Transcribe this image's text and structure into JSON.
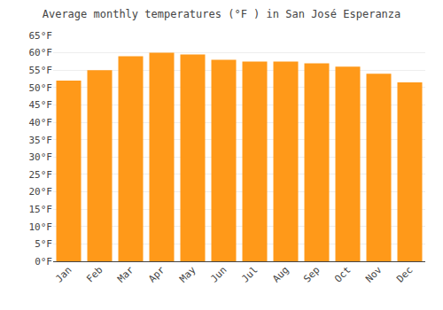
{
  "chart_data": {
    "type": "bar",
    "title": "Average monthly temperatures (°F ) in San José Esperanza",
    "categories": [
      "Jan",
      "Feb",
      "Mar",
      "Apr",
      "May",
      "Jun",
      "Jul",
      "Aug",
      "Sep",
      "Oct",
      "Nov",
      "Dec"
    ],
    "values": [
      52,
      55,
      59,
      60,
      59.5,
      58,
      57.5,
      57.5,
      57,
      56,
      54,
      51.5
    ],
    "color": "#ff9919",
    "ylim": [
      0,
      65
    ],
    "yticks": [
      {
        "value": 0,
        "label": "0°F"
      },
      {
        "value": 5,
        "label": "5°F"
      },
      {
        "value": 10,
        "label": "10°F"
      },
      {
        "value": 15,
        "label": "15°F"
      },
      {
        "value": 20,
        "label": "20°F"
      },
      {
        "value": 25,
        "label": "25°F"
      },
      {
        "value": 30,
        "label": "30°F"
      },
      {
        "value": 35,
        "label": "35°F"
      },
      {
        "value": 40,
        "label": "40°F"
      },
      {
        "value": 45,
        "label": "45°F"
      },
      {
        "value": 50,
        "label": "50°F"
      },
      {
        "value": 55,
        "label": "55°F"
      },
      {
        "value": 60,
        "label": "60°F"
      },
      {
        "value": 65,
        "label": "65°F"
      }
    ],
    "grid": true
  }
}
